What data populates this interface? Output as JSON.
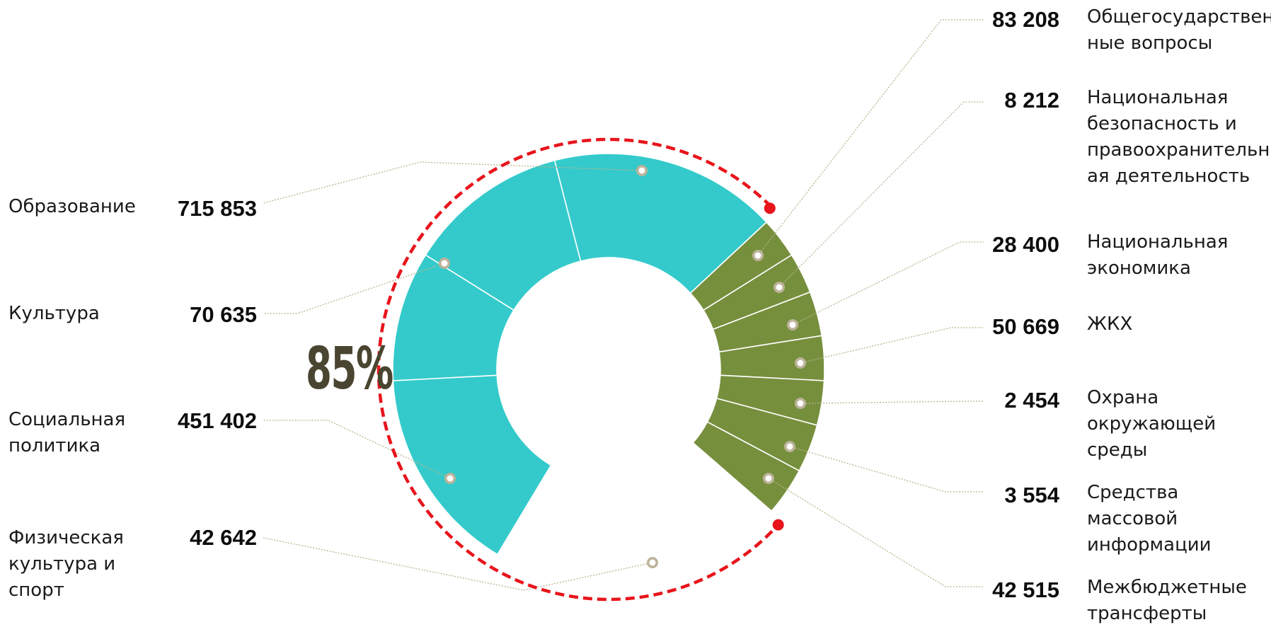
{
  "colors": {
    "major": "#34CACB",
    "minor": "#768F3D",
    "arc": "#E8141B",
    "leader": "#B8B48E",
    "dot": "#BDB39A"
  },
  "share_label": "85%",
  "chart_data": {
    "type": "donut",
    "categories": [
      "Образование",
      "Культура",
      "Социальная политика",
      "Физическая культура и спорт",
      "Общегосударственные вопросы",
      "Национальная безопасность и правоохранительная деятельность",
      "Национальная экономика",
      "ЖКХ",
      "Охрана окружающей среды",
      "Средства массовой информации",
      "Межбюджетные трансферты"
    ],
    "values": [
      715853,
      70635,
      451402,
      42642,
      83208,
      8212,
      28400,
      50669,
      2454,
      3554,
      42515
    ],
    "highlight_share": 85
  },
  "left_items": [
    {
      "label": "Образование",
      "value": "715 853"
    },
    {
      "label": "Культура",
      "value": "70 635"
    },
    {
      "label": "Социальная\nполитика",
      "value": "451 402"
    },
    {
      "label": "Физическая\nкультура и\nспорт",
      "value": "42 642"
    }
  ],
  "right_items": [
    {
      "label": "Общегосударствен\nные вопросы",
      "value": "83 208"
    },
    {
      "label": "Национальная\nбезопасность и\nправоохранительн\nая деятельность",
      "value": "8 212"
    },
    {
      "label": "Национальная\nэкономика",
      "value": "28 400"
    },
    {
      "label": "ЖКХ",
      "value": "50 669"
    },
    {
      "label": "Охрана\nокружающей\nсреды",
      "value": "2 454"
    },
    {
      "label": "Средства\nмассовой\nинформации",
      "value": "3 554"
    },
    {
      "label": "Межбюджетные\nтрансферты",
      "value": "42 515"
    }
  ]
}
